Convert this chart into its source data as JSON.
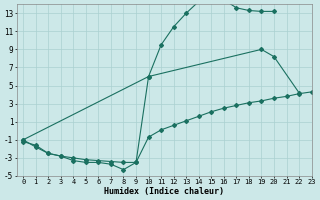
{
  "color": "#1a7060",
  "bg_color": "#cce8e8",
  "grid_color": "#aad0d0",
  "xlabel": "Humidex (Indice chaleur)",
  "ylim": [
    -5,
    14
  ],
  "xlim": [
    -0.5,
    23
  ],
  "yticks": [
    -5,
    -3,
    -1,
    1,
    3,
    5,
    7,
    9,
    11,
    13
  ],
  "xticks": [
    0,
    1,
    2,
    3,
    4,
    5,
    6,
    7,
    8,
    9,
    10,
    11,
    12,
    13,
    14,
    15,
    16,
    17,
    18,
    19,
    20,
    21,
    22,
    23
  ],
  "line1_x": [
    0,
    1,
    2,
    3,
    4,
    5,
    6,
    7,
    8,
    9,
    10,
    11,
    12,
    13,
    14,
    15,
    16,
    17,
    18,
    19,
    20
  ],
  "line1_y": [
    -1.0,
    -1.8,
    -2.5,
    -2.8,
    -3.3,
    -3.5,
    -3.5,
    -3.7,
    -4.3,
    -3.5,
    6.0,
    9.5,
    11.5,
    13.0,
    14.3,
    14.6,
    14.5,
    13.6,
    13.3,
    13.2,
    13.2
  ],
  "line2_x": [
    0,
    10,
    19,
    20,
    22
  ],
  "line2_y": [
    -1.0,
    6.0,
    9.0,
    8.2,
    4.2
  ],
  "line3_x": [
    0,
    1,
    2,
    3,
    4,
    5,
    6,
    7,
    8,
    9,
    10,
    11,
    12,
    13,
    14,
    15,
    16,
    17,
    18,
    19,
    20,
    21,
    22,
    23
  ],
  "line3_y": [
    -1.2,
    -1.6,
    -2.5,
    -2.8,
    -3.0,
    -3.2,
    -3.3,
    -3.4,
    -3.5,
    -3.5,
    -0.7,
    0.1,
    0.6,
    1.1,
    1.6,
    2.1,
    2.5,
    2.8,
    3.1,
    3.3,
    3.6,
    3.8,
    4.1,
    4.3
  ]
}
